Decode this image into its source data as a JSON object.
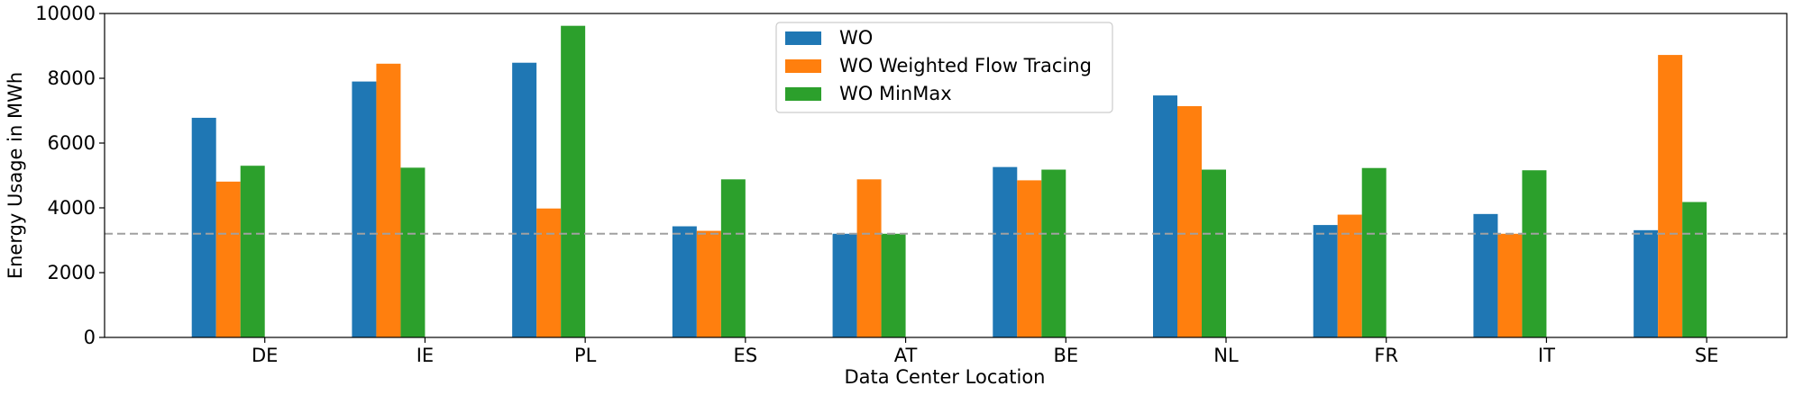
{
  "chart_data": {
    "type": "bar",
    "title": "",
    "xlabel": "Data Center Location",
    "ylabel": "Energy Usage in MWh",
    "ylim": [
      0,
      10000
    ],
    "yticks": [
      0,
      2000,
      4000,
      6000,
      8000,
      10000
    ],
    "categories": [
      "DE",
      "IE",
      "PL",
      "ES",
      "AT",
      "BE",
      "NL",
      "FR",
      "IT",
      "SE"
    ],
    "series": [
      {
        "name": "WO",
        "color": "#1f77b4",
        "values": [
          6780,
          7900,
          8480,
          3430,
          3200,
          5260,
          7470,
          3470,
          3810,
          3310
        ]
      },
      {
        "name": "WO Weighted Flow Tracing",
        "color": "#ff7f0e",
        "values": [
          4810,
          8450,
          3980,
          3290,
          4880,
          4850,
          7140,
          3790,
          3200,
          8720
        ]
      },
      {
        "name": "WO MinMax",
        "color": "#2ca02c",
        "values": [
          5300,
          5240,
          9620,
          4880,
          3200,
          5180,
          5180,
          5230,
          5160,
          4180
        ]
      }
    ],
    "reference_line": {
      "value": 3200,
      "style": "dashed",
      "color": "#a0a0a0"
    },
    "legend_position": "top-center",
    "grid": false
  }
}
